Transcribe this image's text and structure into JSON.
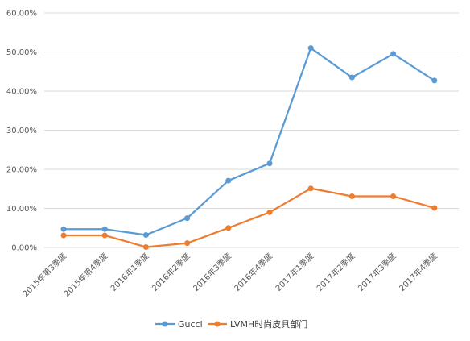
{
  "chart_data": {
    "type": "line",
    "categories": [
      "2015年第3季度",
      "2015年第4季度",
      "2016年1季度",
      "2016年2季度",
      "2016年3季度",
      "2016年4季度",
      "2017年1季度",
      "2017年2季度",
      "2017年3季度",
      "2017年4季度"
    ],
    "series": [
      {
        "name": "Gucci",
        "color": "#5B9BD5",
        "values": [
          4.7,
          4.7,
          3.2,
          7.5,
          17.1,
          21.5,
          51.0,
          43.5,
          49.5,
          42.7
        ]
      },
      {
        "name": "LVMH时尚皮具部门",
        "color": "#ED7D31",
        "values": [
          3.1,
          3.1,
          0.1,
          1.1,
          5.0,
          9.0,
          15.1,
          13.1,
          13.1,
          10.1
        ]
      }
    ],
    "y_ticks": [
      "0.00%",
      "10.00%",
      "20.00%",
      "30.00%",
      "40.00%",
      "50.00%",
      "60.00%"
    ],
    "ylim": [
      0,
      60
    ],
    "grid": true,
    "legend_position": "bottom",
    "title": "",
    "xlabel": "",
    "ylabel": ""
  }
}
